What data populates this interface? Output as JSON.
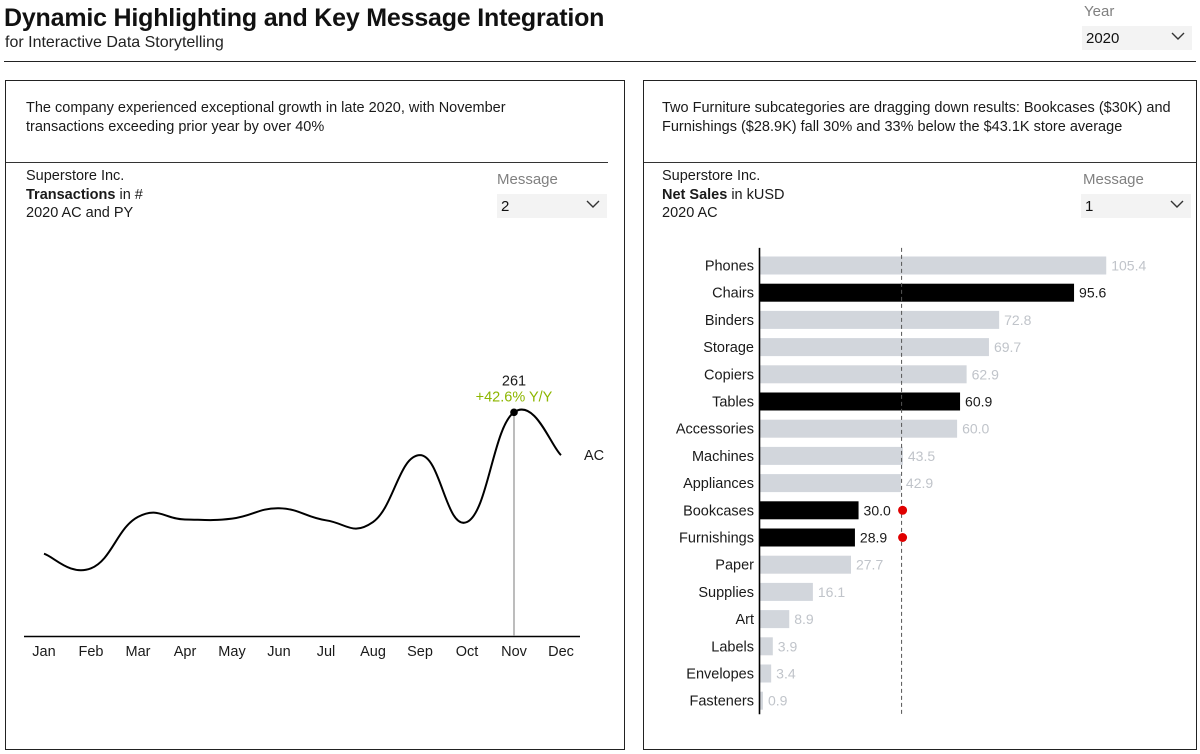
{
  "header": {
    "title": "Dynamic Highlighting and Key Message Integration",
    "subtitle": "for Interactive Data Storytelling",
    "year_label": "Year",
    "year_value": "2020"
  },
  "left_panel": {
    "message": "The company experienced exceptional growth in late 2020, with November transactions exceeding prior year by over 40%",
    "company": "Superstore Inc.",
    "measure": "Transactions",
    "unit": "in #",
    "scenario": "2020 AC and PY",
    "dropdown_label": "Message",
    "dropdown_value": "2"
  },
  "right_panel": {
    "message": "Two Furniture subcategories are dragging down results: Bookcases ($30K) and Furnishings ($28.9K) fall 30% and 33% below the $43.1K store average",
    "company": "Superstore Inc.",
    "measure": "Net Sales",
    "unit": "in kUSD",
    "scenario": "2020 AC",
    "dropdown_label": "Message",
    "dropdown_value": "1"
  },
  "chart_data": [
    {
      "type": "line",
      "categories": [
        "Jan",
        "Feb",
        "Mar",
        "Apr",
        "May",
        "Jun",
        "Jul",
        "Aug",
        "Sep",
        "Oct",
        "Nov",
        "Dec"
      ],
      "series": [
        {
          "name": "AC",
          "values": [
            96,
            79,
            139,
            136,
            137,
            149,
            135,
            133,
            211,
            133,
            261,
            211
          ]
        }
      ],
      "ylim": [
        0,
        320
      ],
      "highlight": {
        "category": "Nov",
        "value_label": "261",
        "delta_label": "+42.6% Y/Y"
      },
      "colors": {
        "line": "#000000",
        "highlight_delta": "#8db600",
        "reference": "#999999"
      }
    },
    {
      "type": "bar",
      "orientation": "horizontal",
      "categories": [
        "Phones",
        "Chairs",
        "Binders",
        "Storage",
        "Copiers",
        "Tables",
        "Accessories",
        "Machines",
        "Appliances",
        "Bookcases",
        "Furnishings",
        "Paper",
        "Supplies",
        "Art",
        "Labels",
        "Envelopes",
        "Fasteners"
      ],
      "values": [
        105.4,
        95.6,
        72.8,
        69.7,
        62.9,
        60.9,
        60.0,
        43.5,
        42.9,
        30.0,
        28.9,
        27.7,
        16.1,
        8.9,
        3.9,
        3.4,
        0.9
      ],
      "value_labels": [
        "105.4",
        "95.6",
        "72.8",
        "69.7",
        "62.9",
        "60.9",
        "60.0",
        "43.5",
        "42.9",
        "30.0",
        "28.9",
        "27.7",
        "16.1",
        "8.9",
        "3.9",
        "3.4",
        "0.9"
      ],
      "highlighted": [
        "Chairs",
        "Tables",
        "Bookcases",
        "Furnishings"
      ],
      "flagged": [
        "Bookcases",
        "Furnishings"
      ],
      "average": 43.1,
      "xlim": [
        0,
        110
      ],
      "colors": {
        "highlight": "#000000",
        "muted": "#d2d6dc",
        "muted_label": "#c0c4ca",
        "flag": "#e00000",
        "average_line": "#555555"
      }
    }
  ]
}
